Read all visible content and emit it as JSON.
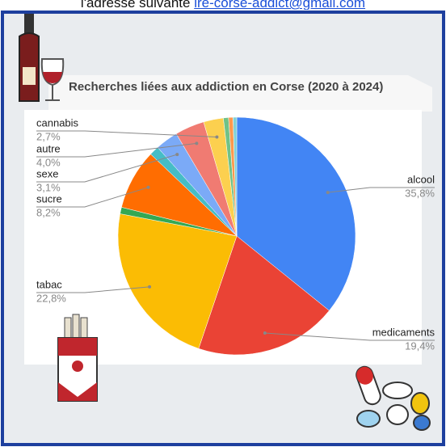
{
  "header": {
    "intro": "l'adresse suivante",
    "email": "ire-corse-addict@gmail.com"
  },
  "chart_data": {
    "type": "pie",
    "title": "Recherches liées aux addiction en Corse (2020 à 2024)",
    "categories": [
      "alcool",
      "medicaments",
      "tabac",
      null,
      "sucre",
      null,
      "sexe",
      "autre",
      "cannabis",
      null,
      null,
      null
    ],
    "values": [
      35.8,
      19.4,
      22.8,
      0.9,
      8.2,
      1.3,
      3.1,
      4.0,
      2.7,
      0.7,
      0.6,
      0.5
    ],
    "value_labels": [
      "35,8%",
      "19,4%",
      "22,8%",
      null,
      "8,2%",
      null,
      "3,1%",
      "4,0%",
      "2,7%",
      null,
      null,
      null
    ],
    "colors": [
      "#4285f4",
      "#ea4335",
      "#fbbc04",
      "#34a853",
      "#ff6d01",
      "#46bdc6",
      "#7baaf7",
      "#f07b72",
      "#fcd04f",
      "#71c287",
      "#ff994d",
      "#7ed1d7"
    ]
  }
}
